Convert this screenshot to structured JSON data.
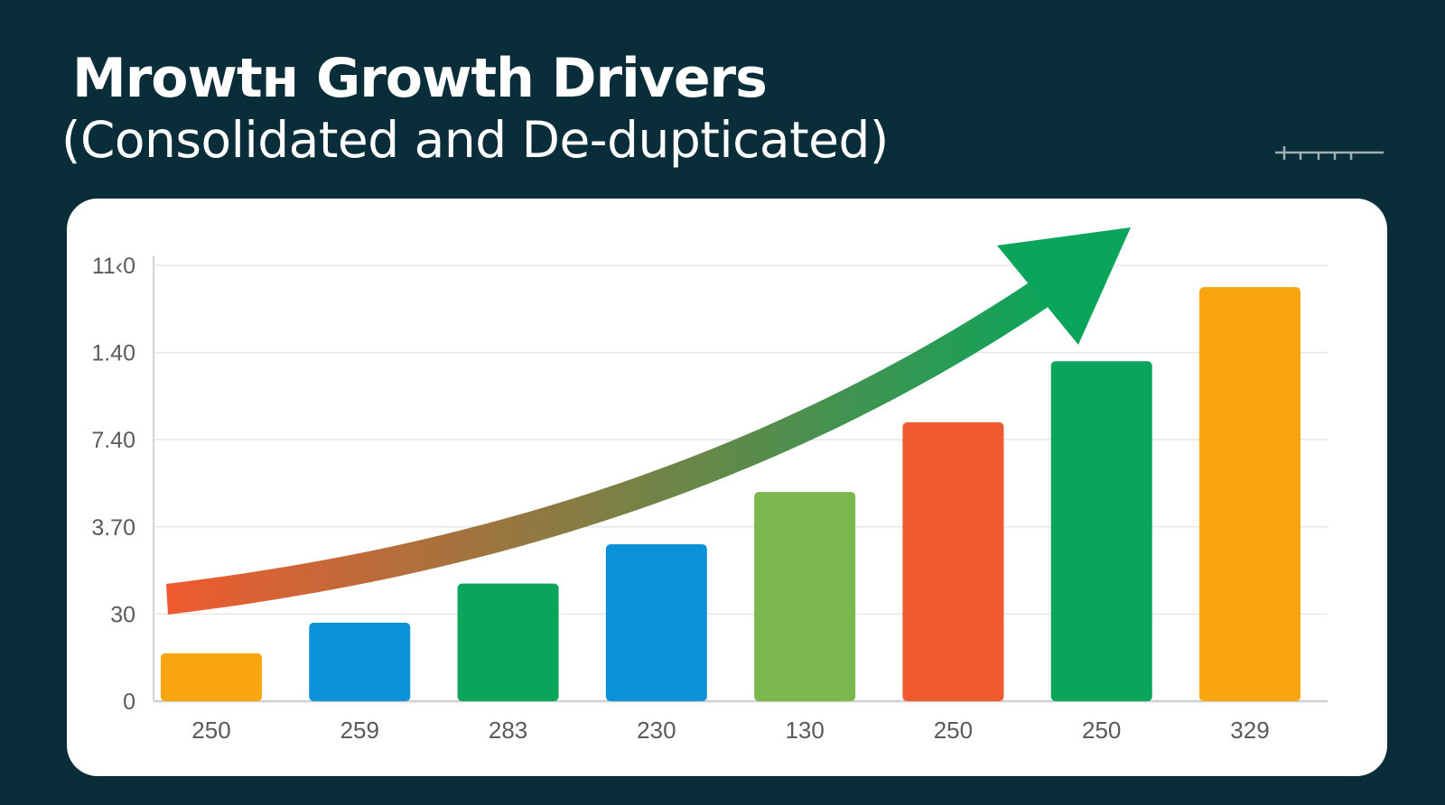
{
  "header": {
    "title": "Mrowtʜ Growth Drivers",
    "subtitle": "(Consolidated and De-dupticated)"
  },
  "chart_data": {
    "type": "bar",
    "title": "Mrowtʜ Growth Drivers",
    "subtitle": "(Consolidated and De-dupticated)",
    "categories": [
      "250",
      "259",
      "283",
      "230",
      "130",
      "250",
      "250",
      "329"
    ],
    "values": [
      0.55,
      0.9,
      1.35,
      1.8,
      2.4,
      3.2,
      3.9,
      4.75
    ],
    "y_tick_labels": [
      "0",
      "30",
      "3.70",
      "7.40",
      "1.40",
      "11‹0"
    ],
    "ylim": [
      0,
      5
    ],
    "xlabel": "",
    "ylabel": "",
    "grid": true,
    "legend": "none",
    "bar_colors": [
      "#f9a50f",
      "#0a91d8",
      "#0aa55a",
      "#0a91d8",
      "#7ab84d",
      "#f05a30",
      "#0aa55a",
      "#f9a50f"
    ],
    "trend_arrow": {
      "present": true,
      "color_start": "#f05a30",
      "color_end": "#0aa55a"
    }
  }
}
